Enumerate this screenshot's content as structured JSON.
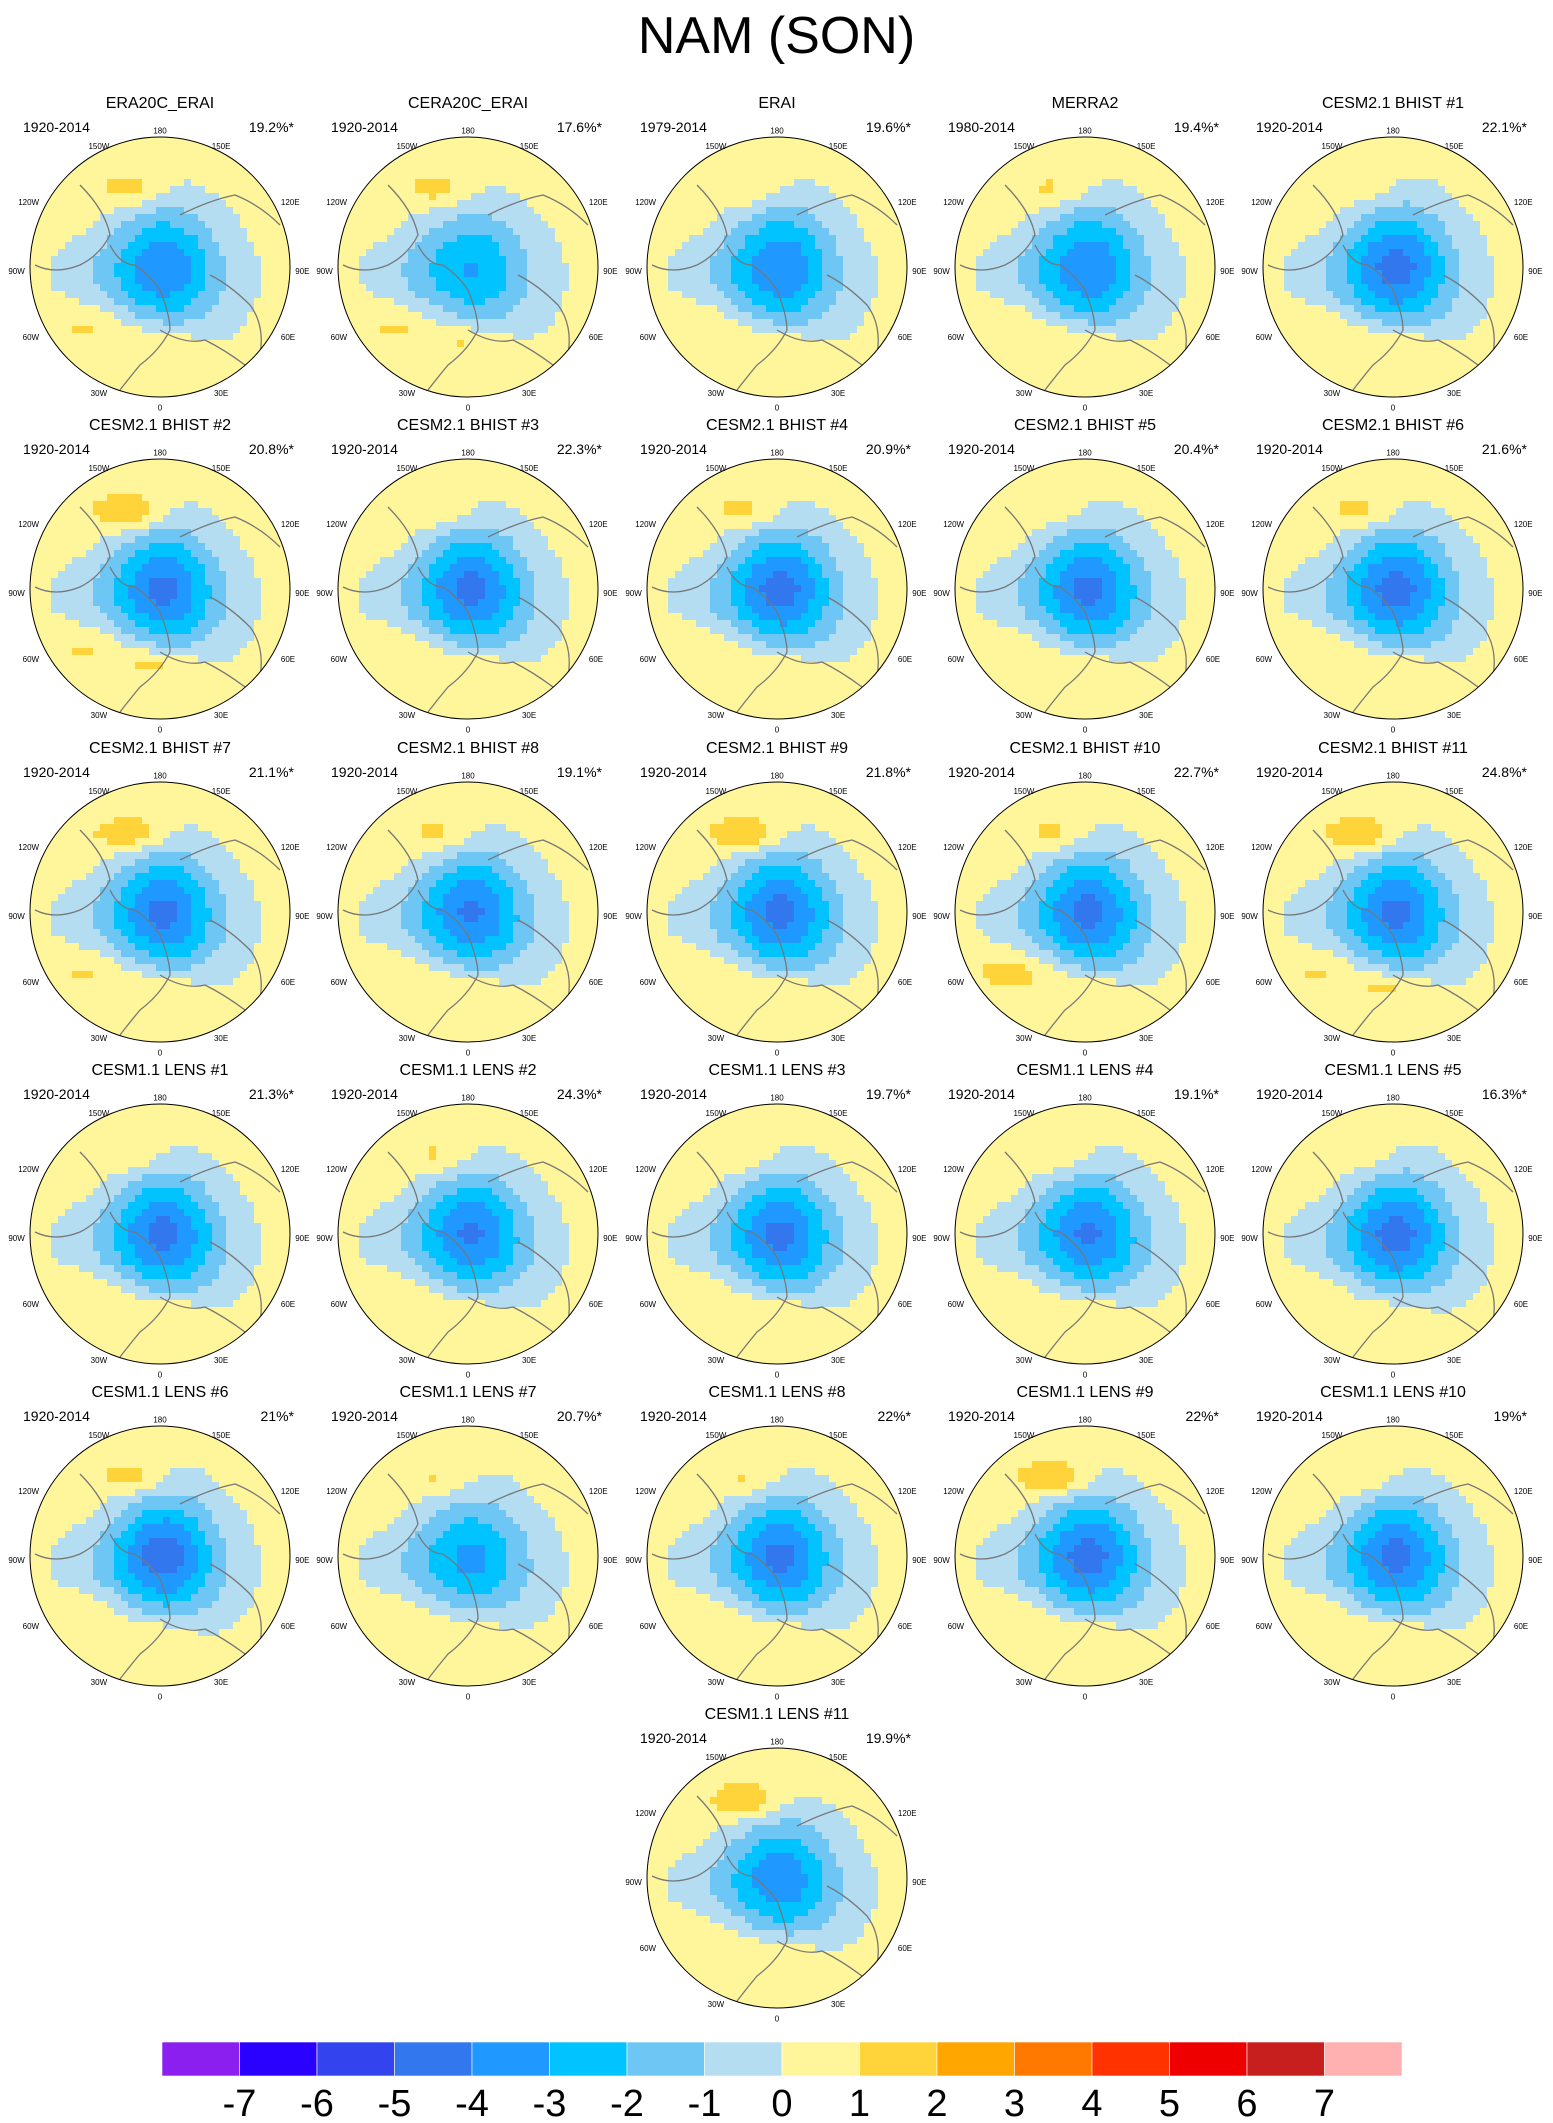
{
  "title": "NAM (SON)",
  "longitude_labels": {
    "top": "180",
    "upper_left": "150W",
    "upper_right": "150E",
    "left_high": "120W",
    "right_high": "120E",
    "left": "90W",
    "right": "90E",
    "left_low": "60W",
    "right_low": "60E",
    "lower_left": "30W",
    "lower_right": "30E",
    "bottom": "0"
  },
  "panels": [
    {
      "name": "ERA20C_ERAI",
      "years": "1920-2014",
      "variance": "19.2%*",
      "pattern": {
        "pac_high": 1.6,
        "atl_high": 1.3,
        "euro_high": 1.4,
        "low_min": -3.2
      }
    },
    {
      "name": "CERA20C_ERAI",
      "years": "1920-2014",
      "variance": "17.6%*",
      "pattern": {
        "pac_high": 1.6,
        "atl_high": 1.3,
        "euro_high": 1.5,
        "low_min": -2.4
      }
    },
    {
      "name": "ERAI",
      "years": "1979-2014",
      "variance": "19.6%*",
      "pattern": {
        "pac_high": 1.3,
        "atl_high": 1.2,
        "euro_high": 1.3,
        "low_min": -3.3
      }
    },
    {
      "name": "MERRA2",
      "years": "1980-2014",
      "variance": "19.4%*",
      "pattern": {
        "pac_high": 1.4,
        "atl_high": 1.2,
        "euro_high": 1.5,
        "low_min": -3.3
      }
    },
    {
      "name": "CESM2.1 BHIST #1",
      "years": "1920-2014",
      "variance": "22.1%*",
      "pattern": {
        "pac_high": 1.1,
        "atl_high": 1.0,
        "euro_high": 1.6,
        "low_min": -3.8
      }
    },
    {
      "name": "CESM2.1 BHIST #2",
      "years": "1920-2014",
      "variance": "20.8%*",
      "pattern": {
        "pac_high": 2.3,
        "atl_high": 1.3,
        "euro_high": 1.8,
        "low_min": -3.6
      }
    },
    {
      "name": "CESM2.1 BHIST #3",
      "years": "1920-2014",
      "variance": "22.3%*",
      "pattern": {
        "pac_high": 1.3,
        "atl_high": 1.1,
        "euro_high": 1.6,
        "low_min": -3.7
      }
    },
    {
      "name": "CESM2.1 BHIST #4",
      "years": "1920-2014",
      "variance": "20.9%*",
      "pattern": {
        "pac_high": 1.6,
        "atl_high": 1.2,
        "euro_high": 1.5,
        "low_min": -3.8
      }
    },
    {
      "name": "CESM2.1 BHIST #5",
      "years": "1920-2014",
      "variance": "20.4%*",
      "pattern": {
        "pac_high": 1.0,
        "atl_high": 1.0,
        "euro_high": 1.5,
        "low_min": -3.6
      }
    },
    {
      "name": "CESM2.1 BHIST #6",
      "years": "1920-2014",
      "variance": "21.6%*",
      "pattern": {
        "pac_high": 1.6,
        "atl_high": 1.2,
        "euro_high": 1.6,
        "low_min": -3.8
      }
    },
    {
      "name": "CESM2.1 BHIST #7",
      "years": "1920-2014",
      "variance": "21.1%*",
      "pattern": {
        "pac_high": 2.1,
        "atl_high": 1.3,
        "euro_high": 1.6,
        "low_min": -3.6
      }
    },
    {
      "name": "CESM2.1 BHIST #8",
      "years": "1920-2014",
      "variance": "19.1%*",
      "pattern": {
        "pac_high": 1.5,
        "atl_high": 1.1,
        "euro_high": 1.6,
        "low_min": -3.5
      }
    },
    {
      "name": "CESM2.1 BHIST #9",
      "years": "1920-2014",
      "variance": "21.8%*",
      "pattern": {
        "pac_high": 2.2,
        "atl_high": 1.2,
        "euro_high": 1.6,
        "low_min": -3.7
      }
    },
    {
      "name": "CESM2.1 BHIST #10",
      "years": "1920-2014",
      "variance": "22.7%*",
      "pattern": {
        "pac_high": 1.5,
        "atl_high": 1.6,
        "euro_high": 1.6,
        "low_min": -3.7
      }
    },
    {
      "name": "CESM2.1 BHIST #11",
      "years": "1920-2014",
      "variance": "24.8%*",
      "pattern": {
        "pac_high": 2.3,
        "atl_high": 1.3,
        "euro_high": 1.8,
        "low_min": -3.6
      }
    },
    {
      "name": "CESM1.1 LENS #1",
      "years": "1920-2014",
      "variance": "21.3%*",
      "pattern": {
        "pac_high": 1.2,
        "atl_high": 1.1,
        "euro_high": 1.6,
        "low_min": -3.7
      }
    },
    {
      "name": "CESM1.1 LENS #2",
      "years": "1920-2014",
      "variance": "24.3%*",
      "pattern": {
        "pac_high": 1.4,
        "atl_high": 1.1,
        "euro_high": 1.3,
        "low_min": -3.5
      }
    },
    {
      "name": "CESM1.1 LENS #3",
      "years": "1920-2014",
      "variance": "19.7%*",
      "pattern": {
        "pac_high": 1.1,
        "atl_high": 1.0,
        "euro_high": 1.4,
        "low_min": -3.6
      }
    },
    {
      "name": "CESM1.1 LENS #4",
      "years": "1920-2014",
      "variance": "19.1%*",
      "pattern": {
        "pac_high": 1.3,
        "atl_high": 1.0,
        "euro_high": 1.5,
        "low_min": -3.5
      }
    },
    {
      "name": "CESM1.1 LENS #5",
      "years": "1920-2014",
      "variance": "16.3%*",
      "pattern": {
        "pac_high": 1.1,
        "atl_high": 0.9,
        "euro_high": 1.1,
        "low_min": -3.8
      }
    },
    {
      "name": "CESM1.1 LENS #6",
      "years": "1920-2014",
      "variance": "21%*",
      "pattern": {
        "pac_high": 1.7,
        "atl_high": 1.1,
        "euro_high": 1.2,
        "low_min": -3.9
      }
    },
    {
      "name": "CESM1.1 LENS #7",
      "years": "1920-2014",
      "variance": "20.7%*",
      "pattern": {
        "pac_high": 1.3,
        "atl_high": 1.0,
        "euro_high": 1.2,
        "low_min": -2.6
      }
    },
    {
      "name": "CESM1.1 LENS #8",
      "years": "1920-2014",
      "variance": "22%*",
      "pattern": {
        "pac_high": 1.4,
        "atl_high": 1.1,
        "euro_high": 1.5,
        "low_min": -3.6
      }
    },
    {
      "name": "CESM1.1 LENS #9",
      "years": "1920-2014",
      "variance": "22%*",
      "pattern": {
        "pac_high": 2.2,
        "atl_high": 1.1,
        "euro_high": 1.6,
        "low_min": -3.8
      }
    },
    {
      "name": "CESM1.1 LENS #10",
      "years": "1920-2014",
      "variance": "19%*",
      "pattern": {
        "pac_high": 1.2,
        "atl_high": 1.0,
        "euro_high": 1.6,
        "low_min": -3.7
      }
    },
    {
      "name": "CESM1.1 LENS #11",
      "years": "1920-2014",
      "variance": "19.9%*",
      "pattern": {
        "pac_high": 2.1,
        "atl_high": 1.1,
        "euro_high": 1.5,
        "low_min": -3.1
      }
    }
  ],
  "colorbar": {
    "ticks": [
      "-7",
      "-6",
      "-5",
      "-4",
      "-3",
      "-2",
      "-1",
      "0",
      "1",
      "2",
      "3",
      "4",
      "5",
      "6",
      "7"
    ],
    "colors": [
      "#8a1ff0",
      "#2a00ff",
      "#3344ee",
      "#3377ee",
      "#1f99ff",
      "#00c3ff",
      "#6ec6f5",
      "#b4ddf2",
      "#fff59b",
      "#ffd43a",
      "#ffa600",
      "#ff7800",
      "#ff3200",
      "#ee0000",
      "#c71e1e",
      "#ffb0b0"
    ]
  },
  "land_color": "#777777"
}
